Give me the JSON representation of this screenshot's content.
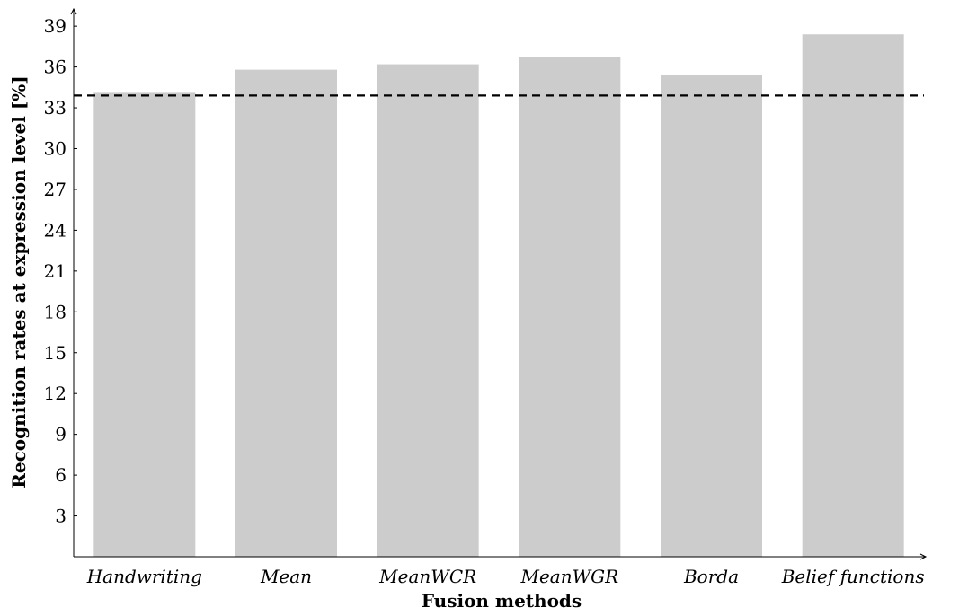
{
  "chart_data": {
    "type": "bar",
    "categories": [
      "Handwriting",
      "Mean",
      "MeanWCR",
      "MeanWGR",
      "Borda",
      "Belief functions"
    ],
    "values": [
      34.1,
      35.8,
      36.2,
      36.7,
      35.4,
      38.4
    ],
    "xlabel": "Fusion methods",
    "ylabel": "Recognition rates at expression level [%]",
    "ylim": [
      0,
      40
    ],
    "yticks": [
      3,
      6,
      9,
      12,
      15,
      18,
      21,
      24,
      27,
      30,
      33,
      36,
      39
    ],
    "reference_line": {
      "value": 33.9,
      "style": "dashed"
    },
    "bar_color": "#cccccc",
    "grid": false,
    "legend": "none"
  }
}
